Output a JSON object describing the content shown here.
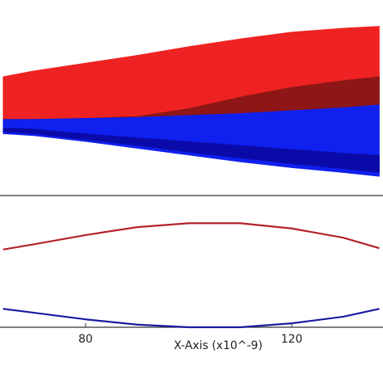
{
  "chart_data": [
    {
      "type": "band",
      "xlim": [
        63.4,
        137.7
      ],
      "ylim": [
        -1,
        1
      ],
      "x": [
        64,
        70,
        80,
        90,
        100,
        110,
        120,
        130,
        137
      ],
      "series": [
        {
          "color": "#ee2222",
          "values": [
            0.21,
            0.27,
            0.35,
            0.43,
            0.52,
            0.6,
            0.67,
            0.71,
            0.73
          ],
          "lower": [
            -0.23,
            -0.23,
            -0.22,
            -0.21,
            -0.19,
            -0.17,
            -0.14,
            -0.11,
            -0.08
          ]
        },
        {
          "color": "#8e1616",
          "values": [
            -0.23,
            -0.23,
            -0.22,
            -0.2,
            -0.12,
            0.0,
            0.1,
            0.17,
            0.21
          ],
          "lower": [
            -0.23,
            -0.23,
            -0.22,
            -0.21,
            -0.19,
            -0.17,
            -0.14,
            -0.11,
            -0.08
          ]
        },
        {
          "color": "#1020ee",
          "values": [
            -0.23,
            -0.23,
            -0.22,
            -0.21,
            -0.19,
            -0.17,
            -0.14,
            -0.11,
            -0.08
          ],
          "lower": [
            -0.38,
            -0.4,
            -0.46,
            -0.53,
            -0.6,
            -0.67,
            -0.73,
            -0.78,
            -0.82
          ]
        },
        {
          "color": "#0a0aa8",
          "values": [
            -0.32,
            -0.33,
            -0.38,
            -0.42,
            -0.46,
            -0.5,
            -0.54,
            -0.58,
            -0.6
          ],
          "lower": [
            -0.36,
            -0.38,
            -0.44,
            -0.5,
            -0.57,
            -0.63,
            -0.69,
            -0.74,
            -0.78
          ]
        }
      ]
    },
    {
      "type": "line",
      "xlabel": "X-Axis (x10^-9)",
      "xlim": [
        63.4,
        137.7
      ],
      "ylim": [
        0,
        1
      ],
      "xticks": [
        80,
        120
      ],
      "x": [
        64,
        70,
        80,
        90,
        100,
        110,
        120,
        130,
        137
      ],
      "series": [
        {
          "color": "#b22228",
          "values": [
            0.59,
            0.63,
            0.7,
            0.76,
            0.79,
            0.79,
            0.75,
            0.68,
            0.6
          ]
        },
        {
          "color": "#1a1aa0",
          "values": [
            0.14,
            0.11,
            0.06,
            0.02,
            0.0,
            0.0,
            0.03,
            0.08,
            0.14
          ]
        }
      ]
    }
  ]
}
